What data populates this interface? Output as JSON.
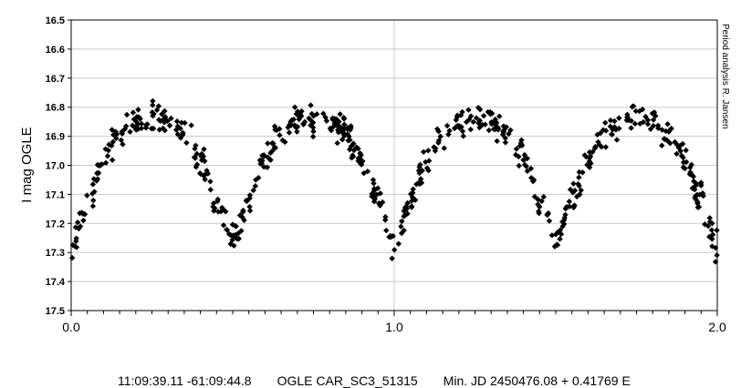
{
  "chart_data": {
    "type": "scatter",
    "title": "",
    "xlabel": "",
    "ylabel": "I mag OGLE",
    "xlim": [
      0.0,
      2.0
    ],
    "ylim": [
      16.5,
      17.5
    ],
    "y_inverted": true,
    "grid": "y-major-and-x-at-1.0",
    "x_ticks": [
      "0.0",
      "1.0",
      "2.0"
    ],
    "y_ticks": [
      "16.5",
      "16.6",
      "16.7",
      "16.8",
      "16.9",
      "17.0",
      "17.1",
      "17.2",
      "17.3",
      "17.4",
      "17.5"
    ],
    "side_note": "Period analysis R. Jansen",
    "marker_color": "#000000",
    "light_curve_model": {
      "description": "EW-type phased light curve, primary and secondary minima at phases 0.0, 0.5, 1.0, 1.5, 2.0",
      "max_mag": 16.84,
      "min_mag": 17.27,
      "samples": [
        {
          "x": 0.0,
          "y": 17.28
        },
        {
          "x": 0.05,
          "y": 17.12
        },
        {
          "x": 0.1,
          "y": 16.98
        },
        {
          "x": 0.15,
          "y": 16.89
        },
        {
          "x": 0.2,
          "y": 16.85
        },
        {
          "x": 0.25,
          "y": 16.84
        },
        {
          "x": 0.3,
          "y": 16.85
        },
        {
          "x": 0.35,
          "y": 16.89
        },
        {
          "x": 0.4,
          "y": 16.98
        },
        {
          "x": 0.45,
          "y": 17.12
        },
        {
          "x": 0.5,
          "y": 17.25
        },
        {
          "x": 0.55,
          "y": 17.12
        },
        {
          "x": 0.6,
          "y": 16.98
        },
        {
          "x": 0.65,
          "y": 16.89
        },
        {
          "x": 0.7,
          "y": 16.85
        },
        {
          "x": 0.75,
          "y": 16.84
        },
        {
          "x": 0.8,
          "y": 16.85
        },
        {
          "x": 0.85,
          "y": 16.89
        },
        {
          "x": 0.9,
          "y": 16.98
        },
        {
          "x": 0.95,
          "y": 17.12
        },
        {
          "x": 1.0,
          "y": 17.28
        },
        {
          "x": 1.05,
          "y": 17.12
        },
        {
          "x": 1.1,
          "y": 16.98
        },
        {
          "x": 1.15,
          "y": 16.89
        },
        {
          "x": 1.2,
          "y": 16.85
        },
        {
          "x": 1.25,
          "y": 16.84
        },
        {
          "x": 1.3,
          "y": 16.85
        },
        {
          "x": 1.35,
          "y": 16.89
        },
        {
          "x": 1.4,
          "y": 16.98
        },
        {
          "x": 1.45,
          "y": 17.12
        },
        {
          "x": 1.5,
          "y": 17.25
        },
        {
          "x": 1.55,
          "y": 17.12
        },
        {
          "x": 1.6,
          "y": 16.98
        },
        {
          "x": 1.65,
          "y": 16.89
        },
        {
          "x": 1.7,
          "y": 16.85
        },
        {
          "x": 1.75,
          "y": 16.84
        },
        {
          "x": 1.8,
          "y": 16.85
        },
        {
          "x": 1.85,
          "y": 16.89
        },
        {
          "x": 1.9,
          "y": 16.98
        },
        {
          "x": 1.95,
          "y": 17.12
        },
        {
          "x": 2.0,
          "y": 17.28
        }
      ]
    }
  },
  "footer": {
    "coords": "11:09:39.11 -61:09:44.8",
    "star_id": "OGLE CAR_SC3_51315",
    "ephemeris": "Min. JD 2450476.08 + 0.41769 E"
  }
}
